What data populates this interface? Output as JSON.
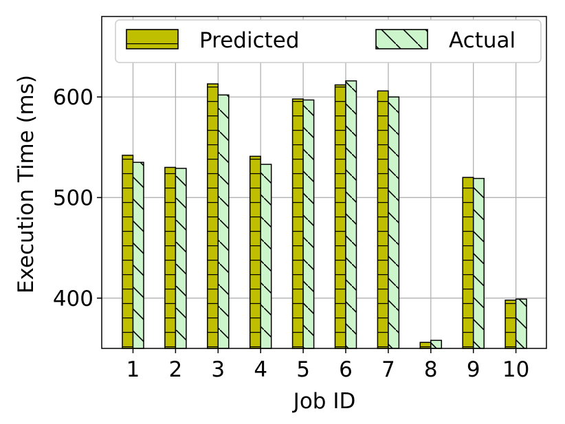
{
  "chart_data": {
    "type": "bar",
    "xlabel": "Job ID",
    "ylabel": "Execution Time (ms)",
    "categories": [
      "1",
      "2",
      "3",
      "4",
      "5",
      "6",
      "7",
      "8",
      "9",
      "10"
    ],
    "ylim": [
      350,
      680
    ],
    "yticks": [
      400,
      500,
      600
    ],
    "grid": true,
    "legend_position": "top",
    "series": [
      {
        "name": "Predicted",
        "color": "#bfbf00",
        "hatch": "horizontal-lines",
        "values": [
          542,
          530,
          613,
          541,
          598,
          612,
          606,
          356,
          520,
          398
        ]
      },
      {
        "name": "Actual",
        "color": "#ccf5cc",
        "hatch": "diagonal-lines",
        "values": [
          535,
          529,
          602,
          533,
          597,
          616,
          600,
          358,
          519,
          399
        ]
      }
    ]
  }
}
